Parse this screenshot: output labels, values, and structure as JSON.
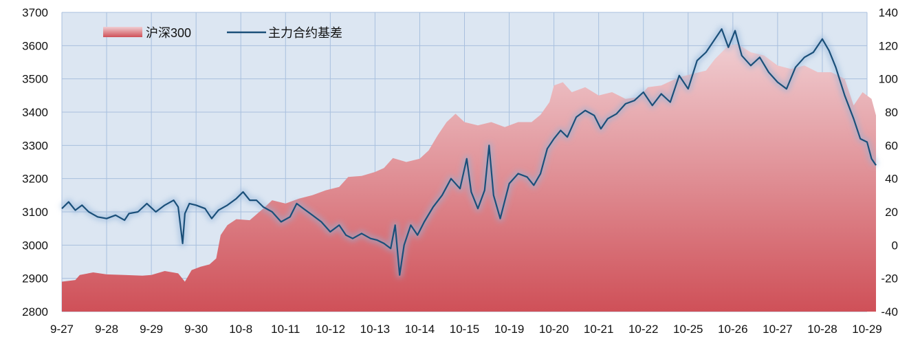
{
  "chart_data": {
    "type": "area",
    "x": [
      "9-27",
      "9-28",
      "9-29",
      "9-30",
      "10-8",
      "10-11",
      "10-12",
      "10-13",
      "10-14",
      "10-15",
      "10-19",
      "10-20",
      "10-21",
      "10-22",
      "10-25",
      "10-26",
      "10-27",
      "10-28",
      "10-29"
    ],
    "y_left": {
      "min": 2800,
      "max": 3700,
      "ticks": [
        2800,
        2900,
        3000,
        3100,
        3200,
        3300,
        3400,
        3500,
        3600,
        3700
      ]
    },
    "y_right": {
      "min": -40,
      "max": 140,
      "ticks": [
        -40,
        -20,
        0,
        20,
        40,
        60,
        80,
        100,
        120,
        140
      ]
    },
    "grid": true,
    "legend_position": "top-left",
    "series": [
      {
        "name": "沪深300",
        "kind": "area",
        "axis": "left",
        "color": "#d45a60",
        "points": [
          [
            0,
            2890
          ],
          [
            0.3,
            2895
          ],
          [
            0.4,
            2910
          ],
          [
            0.7,
            2918
          ],
          [
            1.0,
            2912
          ],
          [
            1.4,
            2910
          ],
          [
            1.8,
            2908
          ],
          [
            2.0,
            2910
          ],
          [
            2.3,
            2922
          ],
          [
            2.6,
            2915
          ],
          [
            2.75,
            2890
          ],
          [
            2.9,
            2925
          ],
          [
            3.1,
            2935
          ],
          [
            3.3,
            2942
          ],
          [
            3.45,
            2960
          ],
          [
            3.55,
            3030
          ],
          [
            3.7,
            3060
          ],
          [
            3.9,
            3078
          ],
          [
            4.2,
            3075
          ],
          [
            4.5,
            3110
          ],
          [
            4.7,
            3135
          ],
          [
            5.0,
            3125
          ],
          [
            5.3,
            3140
          ],
          [
            5.6,
            3150
          ],
          [
            5.9,
            3165
          ],
          [
            6.2,
            3175
          ],
          [
            6.4,
            3205
          ],
          [
            6.7,
            3208
          ],
          [
            7.0,
            3220
          ],
          [
            7.2,
            3232
          ],
          [
            7.4,
            3262
          ],
          [
            7.7,
            3250
          ],
          [
            8.0,
            3260
          ],
          [
            8.2,
            3285
          ],
          [
            8.4,
            3330
          ],
          [
            8.6,
            3370
          ],
          [
            8.8,
            3395
          ],
          [
            9.0,
            3370
          ],
          [
            9.3,
            3360
          ],
          [
            9.6,
            3370
          ],
          [
            9.9,
            3355
          ],
          [
            10.2,
            3370
          ],
          [
            10.5,
            3370
          ],
          [
            10.7,
            3392
          ],
          [
            10.9,
            3430
          ],
          [
            11.0,
            3480
          ],
          [
            11.2,
            3490
          ],
          [
            11.4,
            3460
          ],
          [
            11.7,
            3475
          ],
          [
            12.0,
            3450
          ],
          [
            12.3,
            3460
          ],
          [
            12.6,
            3440
          ],
          [
            12.9,
            3445
          ],
          [
            13.1,
            3475
          ],
          [
            13.4,
            3480
          ],
          [
            13.8,
            3505
          ],
          [
            14.1,
            3515
          ],
          [
            14.4,
            3525
          ],
          [
            14.6,
            3560
          ],
          [
            14.9,
            3600
          ],
          [
            15.1,
            3605
          ],
          [
            15.4,
            3580
          ],
          [
            15.7,
            3570
          ],
          [
            16.0,
            3540
          ],
          [
            16.3,
            3530
          ],
          [
            16.6,
            3540
          ],
          [
            16.9,
            3520
          ],
          [
            17.2,
            3520
          ],
          [
            17.5,
            3500
          ],
          [
            17.7,
            3420
          ],
          [
            17.9,
            3460
          ],
          [
            18.1,
            3440
          ],
          [
            18.2,
            3390
          ]
        ]
      },
      {
        "name": "主力合约基差",
        "kind": "line",
        "axis": "right",
        "color": "#1a4f79",
        "points": [
          [
            0,
            22
          ],
          [
            0.15,
            26
          ],
          [
            0.3,
            21
          ],
          [
            0.45,
            24
          ],
          [
            0.6,
            20
          ],
          [
            0.8,
            17
          ],
          [
            1.0,
            16
          ],
          [
            1.2,
            18
          ],
          [
            1.4,
            15
          ],
          [
            1.5,
            19
          ],
          [
            1.7,
            20
          ],
          [
            1.9,
            25
          ],
          [
            2.1,
            20
          ],
          [
            2.3,
            24
          ],
          [
            2.5,
            27
          ],
          [
            2.6,
            23
          ],
          [
            2.7,
            1
          ],
          [
            2.75,
            19
          ],
          [
            2.85,
            25
          ],
          [
            3.0,
            24
          ],
          [
            3.2,
            22
          ],
          [
            3.35,
            16
          ],
          [
            3.5,
            21
          ],
          [
            3.7,
            24
          ],
          [
            3.9,
            28
          ],
          [
            4.05,
            32
          ],
          [
            4.2,
            27
          ],
          [
            4.35,
            27
          ],
          [
            4.5,
            23
          ],
          [
            4.7,
            20
          ],
          [
            4.9,
            14
          ],
          [
            5.1,
            17
          ],
          [
            5.25,
            25
          ],
          [
            5.4,
            22
          ],
          [
            5.6,
            18
          ],
          [
            5.8,
            14
          ],
          [
            6.0,
            8
          ],
          [
            6.2,
            12
          ],
          [
            6.35,
            6
          ],
          [
            6.5,
            4
          ],
          [
            6.7,
            7
          ],
          [
            6.9,
            4
          ],
          [
            7.05,
            3
          ],
          [
            7.2,
            1
          ],
          [
            7.35,
            -2
          ],
          [
            7.45,
            12
          ],
          [
            7.55,
            -18
          ],
          [
            7.65,
            0
          ],
          [
            7.8,
            12
          ],
          [
            7.95,
            6
          ],
          [
            8.1,
            14
          ],
          [
            8.3,
            23
          ],
          [
            8.5,
            30
          ],
          [
            8.7,
            40
          ],
          [
            8.9,
            34
          ],
          [
            9.05,
            52
          ],
          [
            9.15,
            32
          ],
          [
            9.3,
            22
          ],
          [
            9.45,
            33
          ],
          [
            9.55,
            60
          ],
          [
            9.65,
            30
          ],
          [
            9.8,
            16
          ],
          [
            10.0,
            37
          ],
          [
            10.2,
            43
          ],
          [
            10.4,
            41
          ],
          [
            10.55,
            36
          ],
          [
            10.7,
            43
          ],
          [
            10.85,
            58
          ],
          [
            11.0,
            64
          ],
          [
            11.15,
            69
          ],
          [
            11.3,
            65
          ],
          [
            11.5,
            77
          ],
          [
            11.7,
            81
          ],
          [
            11.9,
            78
          ],
          [
            12.05,
            70
          ],
          [
            12.2,
            76
          ],
          [
            12.4,
            79
          ],
          [
            12.6,
            85
          ],
          [
            12.8,
            87
          ],
          [
            13.0,
            92
          ],
          [
            13.2,
            84
          ],
          [
            13.4,
            91
          ],
          [
            13.6,
            86
          ],
          [
            13.8,
            102
          ],
          [
            14.0,
            94
          ],
          [
            14.2,
            111
          ],
          [
            14.4,
            116
          ],
          [
            14.6,
            124
          ],
          [
            14.75,
            130
          ],
          [
            14.9,
            119
          ],
          [
            15.05,
            129
          ],
          [
            15.2,
            114
          ],
          [
            15.4,
            108
          ],
          [
            15.6,
            113
          ],
          [
            15.8,
            104
          ],
          [
            16.0,
            98
          ],
          [
            16.2,
            94
          ],
          [
            16.4,
            107
          ],
          [
            16.6,
            113
          ],
          [
            16.8,
            116
          ],
          [
            17.0,
            124
          ],
          [
            17.15,
            117
          ],
          [
            17.3,
            107
          ],
          [
            17.5,
            90
          ],
          [
            17.7,
            76
          ],
          [
            17.85,
            64
          ],
          [
            18.0,
            62
          ],
          [
            18.1,
            52
          ],
          [
            18.2,
            48
          ]
        ]
      }
    ]
  },
  "legend": [
    {
      "label": "沪深300",
      "swatch": "area",
      "color": "#d45a60"
    },
    {
      "label": "主力合约基差",
      "swatch": "line",
      "color": "#1a4f79"
    }
  ],
  "colors": {
    "plot_background": "#dce6f2",
    "grid": "#a8bfde",
    "area_top": "#f0cdd1",
    "area_bottom": "#cf5058",
    "line": "#1a4f79",
    "line_glow": "#8fb3d9"
  }
}
